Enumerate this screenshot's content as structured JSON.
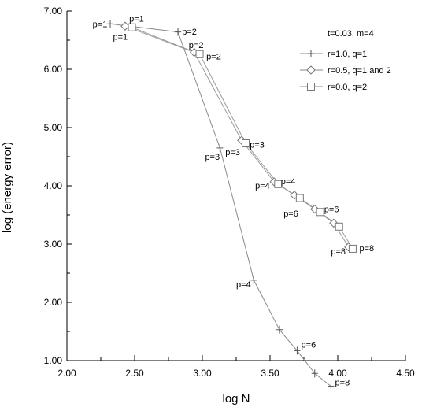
{
  "chart_data": {
    "type": "line",
    "title": "",
    "xlabel": "log N",
    "ylabel": "log (energy error)",
    "xlim": [
      2.0,
      4.5
    ],
    "ylim": [
      1.0,
      7.0
    ],
    "x_ticks": [
      "2.00",
      "2.50",
      "3.00",
      "3.50",
      "4.00",
      "4.50"
    ],
    "y_ticks": [
      "1.00",
      "2.00",
      "3.00",
      "4.00",
      "5.00",
      "6.00",
      "7.00"
    ],
    "legend_position": "top-right",
    "legend_header": "t=0.03, m=4",
    "series": [
      {
        "name": "r=1.0, q=1",
        "marker": "plus",
        "x": [
          2.32,
          2.82,
          3.13,
          3.38,
          3.57,
          3.7,
          3.83,
          3.95
        ],
        "y": [
          6.78,
          6.64,
          4.65,
          2.38,
          1.53,
          1.17,
          0.78,
          0.56
        ]
      },
      {
        "name": "r=0.5, q=1 and 2",
        "marker": "diamond",
        "x": [
          2.43,
          2.94,
          3.29,
          3.53,
          3.68,
          3.83,
          3.97,
          4.08
        ],
        "y": [
          6.74,
          6.29,
          4.78,
          4.07,
          3.84,
          3.6,
          3.36,
          2.95
        ]
      },
      {
        "name": "r=0.0, q=2",
        "marker": "square",
        "x": [
          2.48,
          2.98,
          3.32,
          3.56,
          3.72,
          3.87,
          4.01,
          4.11
        ],
        "y": [
          6.72,
          6.26,
          4.73,
          4.03,
          3.79,
          3.55,
          3.3,
          2.92
        ]
      }
    ],
    "annotations": [
      {
        "text": "p=1",
        "x": 2.19,
        "y": 6.78
      },
      {
        "text": "p=1",
        "x": 2.46,
        "y": 6.87
      },
      {
        "text": "p=1",
        "x": 2.34,
        "y": 6.56
      },
      {
        "text": "p=2",
        "x": 2.85,
        "y": 6.65
      },
      {
        "text": "p=2",
        "x": 2.9,
        "y": 6.42
      },
      {
        "text": "p=2",
        "x": 3.03,
        "y": 6.22
      },
      {
        "text": "p=3",
        "x": 3.02,
        "y": 4.5
      },
      {
        "text": "p=3",
        "x": 3.17,
        "y": 4.58
      },
      {
        "text": "p=3",
        "x": 3.35,
        "y": 4.71
      },
      {
        "text": "p=4",
        "x": 3.25,
        "y": 2.31
      },
      {
        "text": "p=4",
        "x": 3.39,
        "y": 4.01
      },
      {
        "text": "p=4",
        "x": 3.58,
        "y": 4.08
      },
      {
        "text": "p=6",
        "x": 3.73,
        "y": 1.28
      },
      {
        "text": "p=6",
        "x": 3.6,
        "y": 3.53
      },
      {
        "text": "p=6",
        "x": 3.9,
        "y": 3.6
      },
      {
        "text": "p=8",
        "x": 3.98,
        "y": 0.63
      },
      {
        "text": "p=8",
        "x": 3.95,
        "y": 2.88
      },
      {
        "text": "p=8",
        "x": 4.16,
        "y": 2.93
      }
    ]
  }
}
